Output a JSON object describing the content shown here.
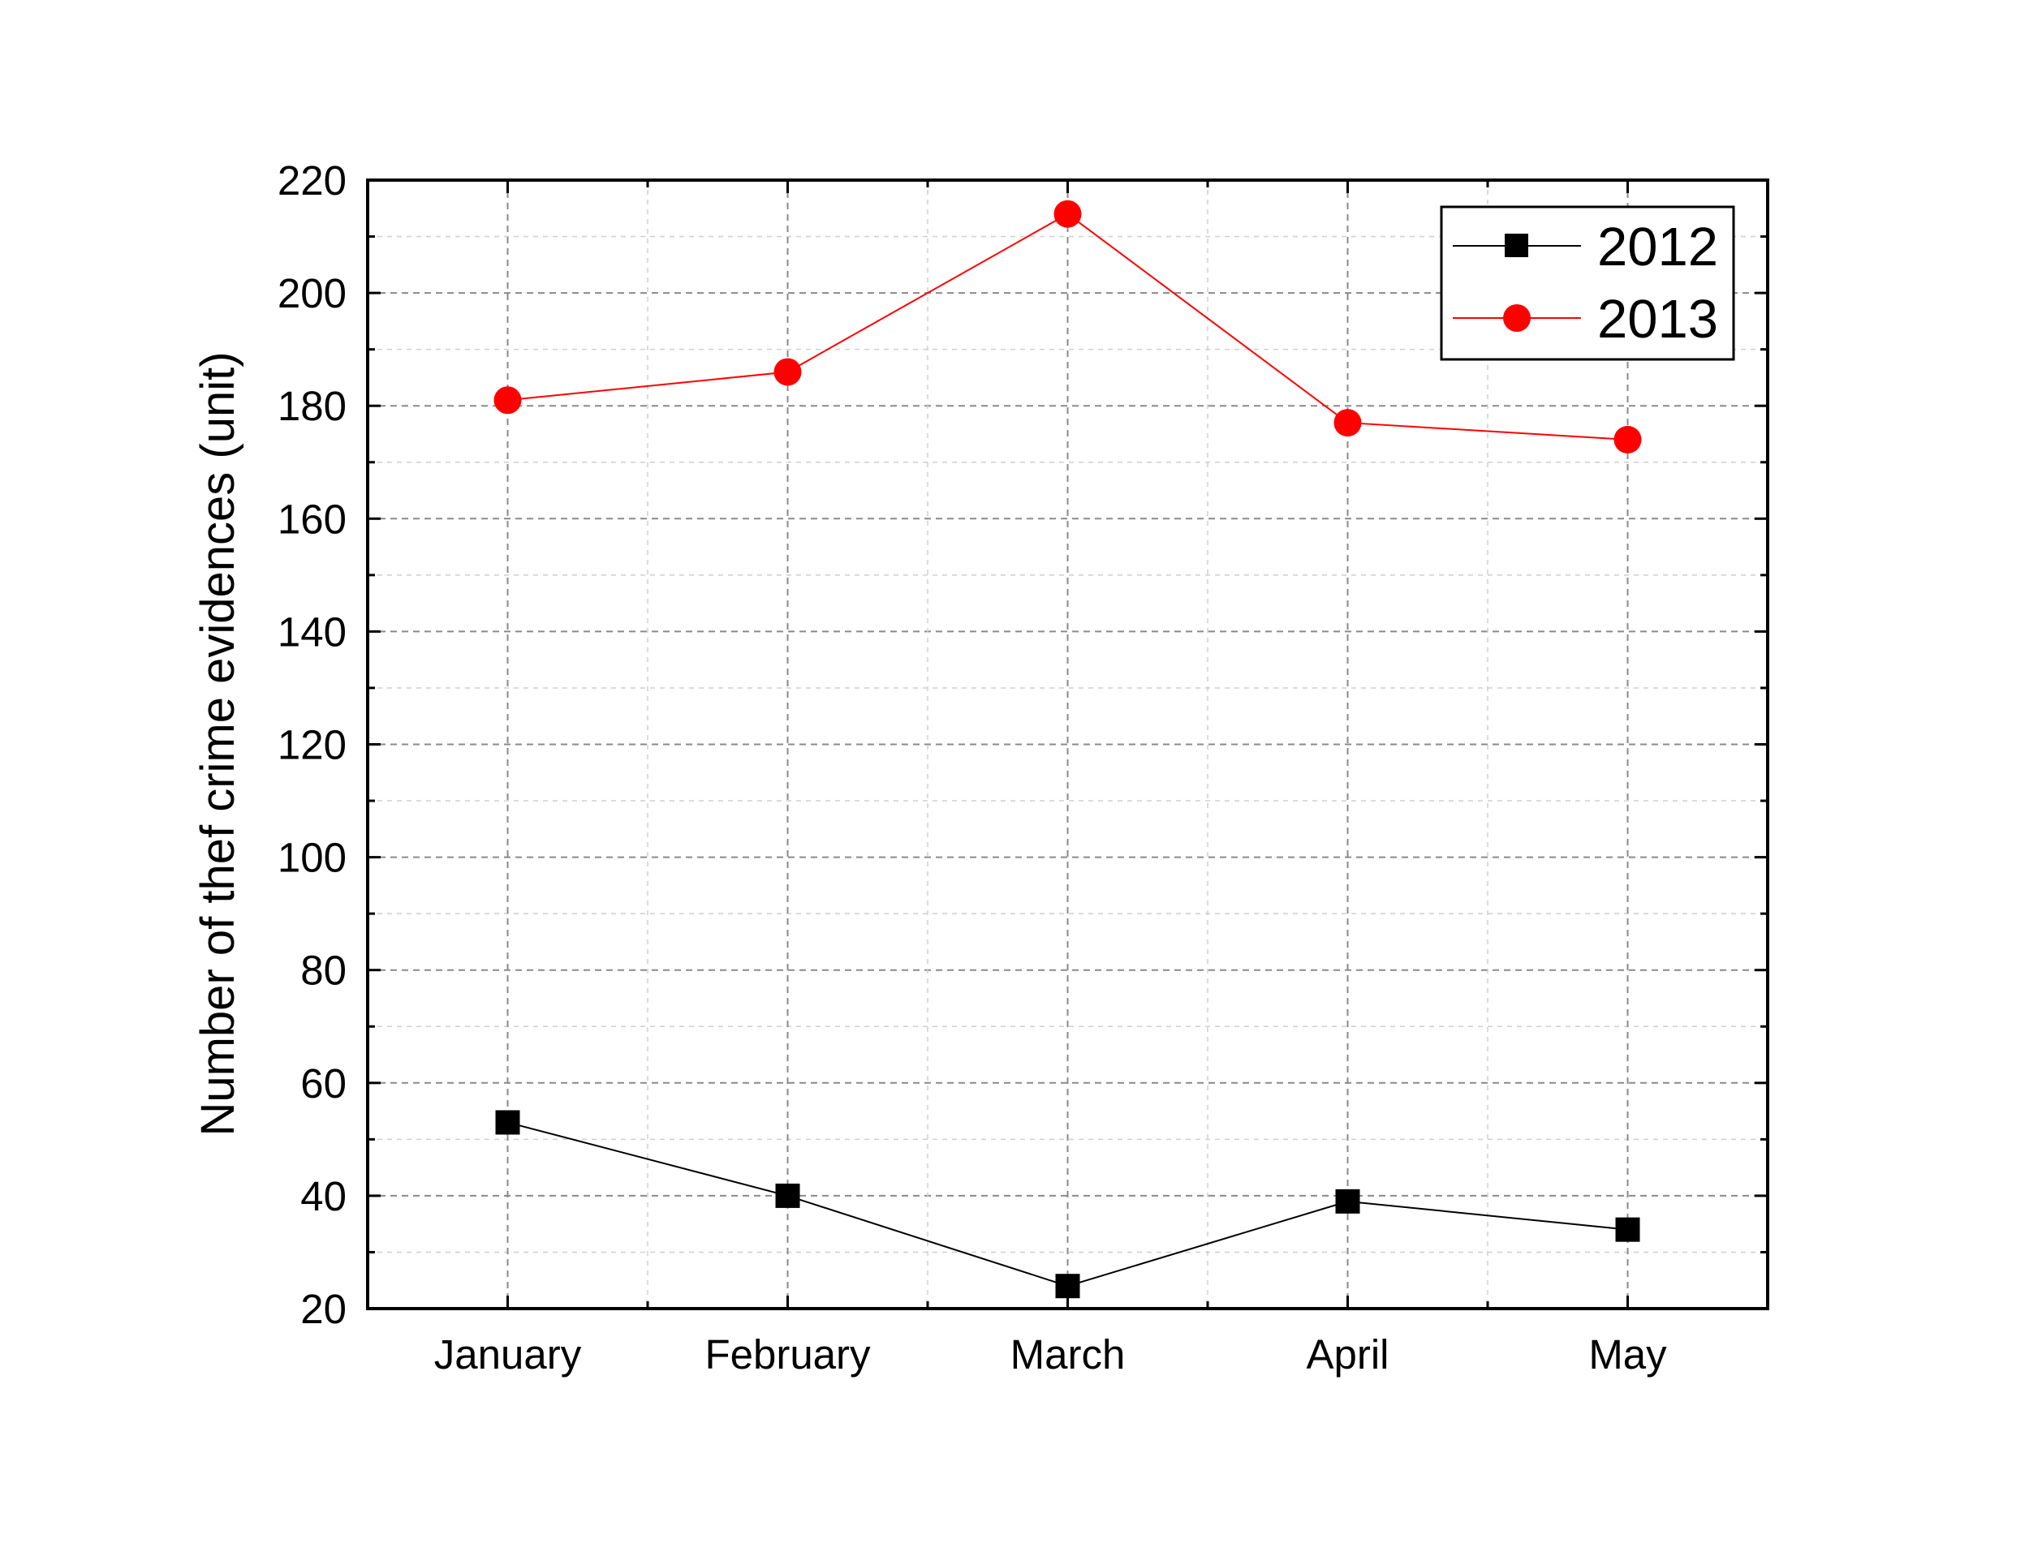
{
  "chart_data": {
    "type": "line",
    "title": "",
    "xlabel": "",
    "ylabel": "Number of thef crime evidences (unit)",
    "categories": [
      "January",
      "February",
      "March",
      "April",
      "May"
    ],
    "ylim": [
      20,
      220
    ],
    "yticks": [
      20,
      40,
      60,
      80,
      100,
      120,
      140,
      160,
      180,
      200,
      220
    ],
    "grid": true,
    "legend_position": "top-right",
    "series": [
      {
        "name": "2012",
        "color": "#000000",
        "marker": "square",
        "values": [
          53,
          40,
          24,
          39,
          34
        ]
      },
      {
        "name": "2013",
        "color": "#ff0000",
        "marker": "circle",
        "values": [
          181,
          186,
          214,
          177,
          174
        ]
      }
    ]
  }
}
